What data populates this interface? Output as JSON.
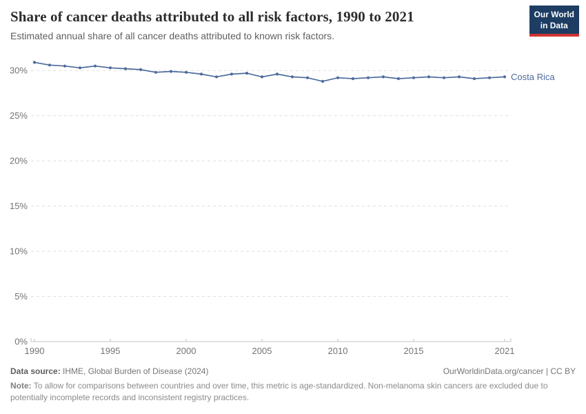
{
  "header": {
    "logo": {
      "line1": "Our World",
      "line2": "in Data",
      "bg_color": "#1d3d63",
      "bar_color": "#d03331"
    }
  },
  "chart_data": {
    "type": "line",
    "title": "Share of cancer deaths attributed to all risk factors, 1990 to 2021",
    "subtitle": "Estimated annual share of all cancer deaths attributed to known risk factors.",
    "unit": "%",
    "x": [
      1990,
      1991,
      1992,
      1993,
      1994,
      1995,
      1996,
      1997,
      1998,
      1999,
      2000,
      2001,
      2002,
      2003,
      2004,
      2005,
      2006,
      2007,
      2008,
      2009,
      2010,
      2011,
      2012,
      2013,
      2014,
      2015,
      2016,
      2017,
      2018,
      2019,
      2020,
      2021
    ],
    "series": [
      {
        "name": "Costa Rica",
        "color": "#4C6A9C",
        "values": [
          30.9,
          30.6,
          30.5,
          30.3,
          30.5,
          30.3,
          30.2,
          30.1,
          29.8,
          29.9,
          29.8,
          29.6,
          29.3,
          29.6,
          29.7,
          29.3,
          29.6,
          29.3,
          29.2,
          28.8,
          29.2,
          29.1,
          29.2,
          29.3,
          29.1,
          29.2,
          29.3,
          29.2,
          29.3,
          29.1,
          29.2,
          29.3
        ]
      }
    ],
    "xticks": [
      1990,
      1995,
      2000,
      2005,
      2010,
      2015,
      2021
    ],
    "xtick_labels": [
      "1990",
      "1995",
      "2000",
      "2005",
      "2010",
      "2015",
      "2021"
    ],
    "ytick_values": [
      0,
      5,
      10,
      15,
      20,
      25,
      30
    ],
    "ytick_labels": [
      "0%",
      "5%",
      "10%",
      "15%",
      "20%",
      "25%",
      "30%"
    ],
    "ylim": [
      0,
      31.6
    ],
    "xlabel": "",
    "ylabel": "",
    "grid": "horizontal-dashed",
    "legend": "label-at-line-end"
  },
  "footer": {
    "datasource_label": "Data source:",
    "datasource_value": " IHME, Global Burden of Disease (2024)",
    "attribution": "OurWorldinData.org/cancer | CC BY",
    "note_label": "Note:",
    "note_value": " To allow for comparisons between countries and over time, this metric is age-standardized. Non-melanoma skin cancers are excluded due to potentially incomplete records and inconsistent registry practices."
  }
}
